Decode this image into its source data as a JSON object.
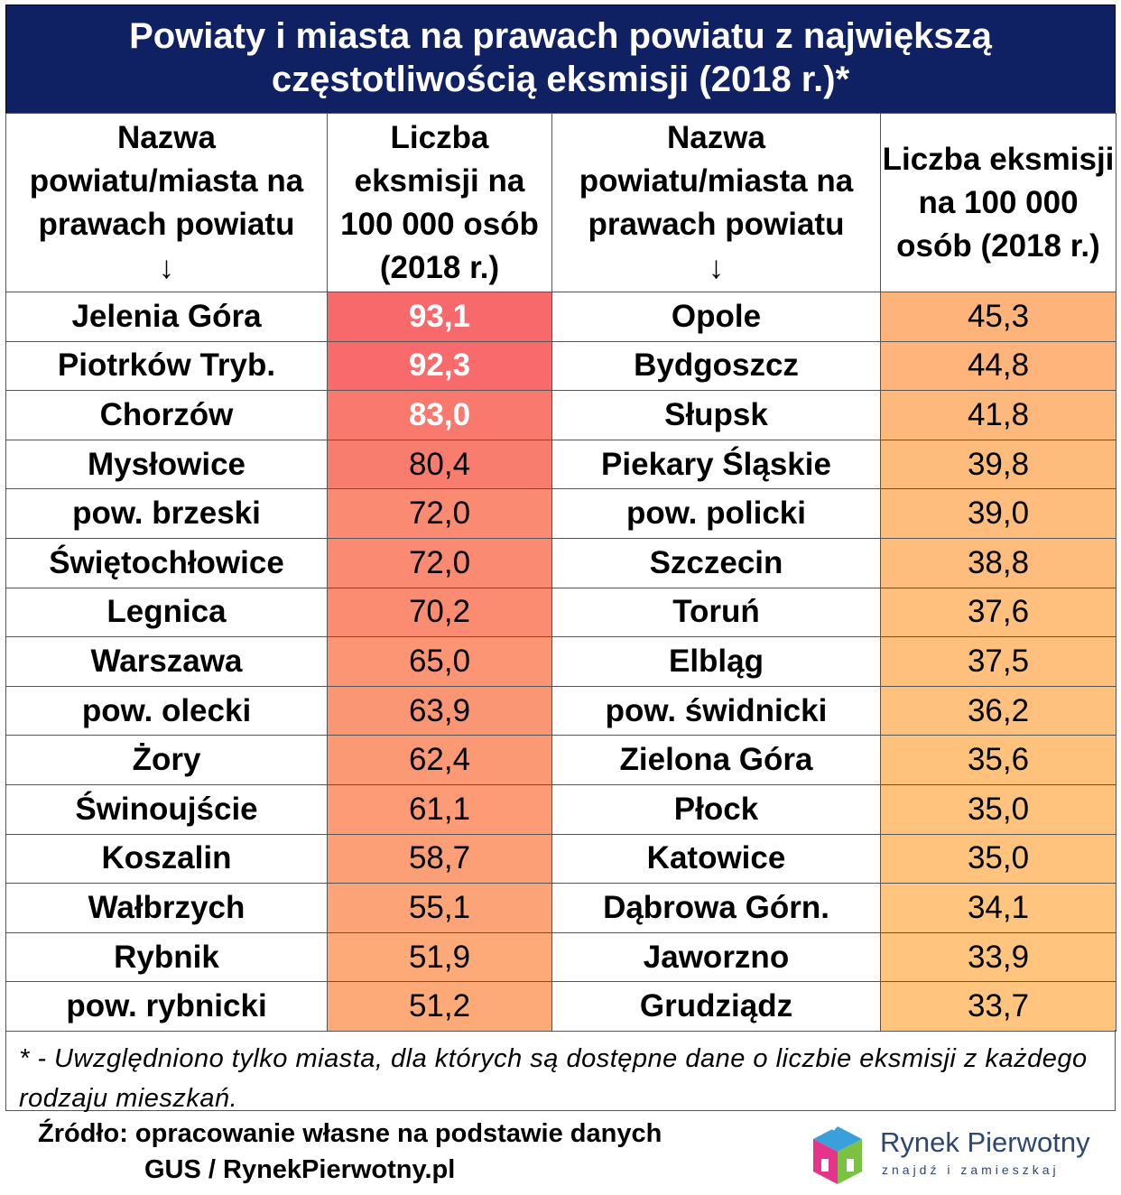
{
  "title": "Powiaty i miasta na prawach powiatu z największą częstotliwością eksmisji (2018 r.)*",
  "headers": {
    "name_col": "Nazwa powiatu/miasta na prawach powiatu",
    "value_col": "Liczba eksmisji na 100 000 osób (2018 r.)",
    "arrow": "↓"
  },
  "chart_data": {
    "type": "table",
    "title": "Powiaty i miasta na prawach powiatu z największą częstotliwością eksmisji (2018 r.)*",
    "columns": [
      "Nazwa powiatu/miasta na prawach powiatu",
      "Liczba eksmisji na 100 000 osób (2018 r.)"
    ],
    "rows": [
      {
        "name": "Jelenia Góra",
        "value": "93,1"
      },
      {
        "name": "Piotrków Tryb.",
        "value": "92,3"
      },
      {
        "name": "Chorzów",
        "value": "83,0"
      },
      {
        "name": "Mysłowice",
        "value": "80,4"
      },
      {
        "name": "pow. brzeski",
        "value": "72,0"
      },
      {
        "name": "Świętochłowice",
        "value": "72,0"
      },
      {
        "name": "Legnica",
        "value": "70,2"
      },
      {
        "name": "Warszawa",
        "value": "65,0"
      },
      {
        "name": "pow. olecki",
        "value": "63,9"
      },
      {
        "name": "Żory",
        "value": "62,4"
      },
      {
        "name": "Świnoujście",
        "value": "61,1"
      },
      {
        "name": "Koszalin",
        "value": "58,7"
      },
      {
        "name": "Wałbrzych",
        "value": "55,1"
      },
      {
        "name": "Rybnik",
        "value": "51,9"
      },
      {
        "name": "pow. rybnicki",
        "value": "51,2"
      },
      {
        "name": "Opole",
        "value": "45,3"
      },
      {
        "name": "Bydgoszcz",
        "value": "44,8"
      },
      {
        "name": "Słupsk",
        "value": "41,8"
      },
      {
        "name": "Piekary Śląskie",
        "value": "39,8"
      },
      {
        "name": "pow. policki",
        "value": "39,0"
      },
      {
        "name": "Szczecin",
        "value": "38,8"
      },
      {
        "name": "Toruń",
        "value": "37,6"
      },
      {
        "name": "Elbląg",
        "value": "37,5"
      },
      {
        "name": "pow. świdnicki",
        "value": "36,2"
      },
      {
        "name": "Zielona Góra",
        "value": "35,6"
      },
      {
        "name": "Płock",
        "value": "35,0"
      },
      {
        "name": "Katowice",
        "value": "35,0"
      },
      {
        "name": "Dąbrowa Górn.",
        "value": "34,1"
      },
      {
        "name": "Jaworzno",
        "value": "33,9"
      },
      {
        "name": "Grudziądz",
        "value": "33,7"
      }
    ],
    "bold_top_n": 3,
    "heat_colors": {
      "high": "#f8696b",
      "low": "#ffc57e"
    }
  },
  "footnote": "* - Uwzględniono tylko miasta, dla których są dostępne dane o liczbie eksmisji z każdego rodzaju mieszkań.",
  "source_line1": "Źródło: opracowanie własne na podstawie danych",
  "source_line2": "GUS / RynekPierwotny.pl",
  "logo": {
    "name": "Rynek Pierwotny",
    "tagline": "znajdź i zamieszkaj"
  }
}
